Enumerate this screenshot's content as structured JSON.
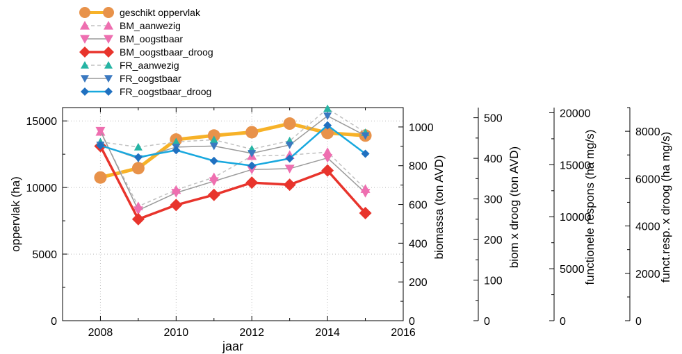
{
  "chart_data": {
    "type": "line",
    "xlabel": "jaar",
    "x": [
      2008,
      2009,
      2010,
      2011,
      2012,
      2013,
      2014,
      2015
    ],
    "xlim": [
      2007,
      2016
    ],
    "xticks": [
      2008,
      2010,
      2012,
      2014,
      2016
    ],
    "grid": true,
    "legend_position": "top-left",
    "axes": [
      {
        "id": "opp",
        "label": "oppervlak (ha)",
        "side": "left",
        "ylim": [
          0,
          16000
        ],
        "ticks": [
          0,
          5000,
          10000,
          15000
        ]
      },
      {
        "id": "bio",
        "label": "biomassa (ton AVD)",
        "side": "right",
        "ylim": [
          0,
          1100
        ],
        "ticks": [
          0,
          200,
          400,
          600,
          800,
          1000
        ]
      },
      {
        "id": "droog",
        "label": "biom x droog (ton AVD)",
        "side": "right",
        "ylim": [
          0,
          525
        ],
        "ticks": [
          0,
          100,
          200,
          300,
          400,
          500
        ]
      },
      {
        "id": "fr",
        "label": "functionele respons (ha mg/s)",
        "side": "right",
        "ylim": [
          0,
          20500
        ],
        "ticks": [
          0,
          5000,
          10000,
          15000,
          20000
        ]
      },
      {
        "id": "frdroog",
        "label": "funct.resp. x droog (ha mg/s)",
        "side": "right",
        "ylim": [
          0,
          9000
        ],
        "ticks": [
          0,
          2000,
          4000,
          6000,
          8000
        ]
      }
    ],
    "series": [
      {
        "name": "geschikt oppervlak",
        "axis": "opp",
        "color": "#f7b228",
        "marker_color": "#e8924a",
        "marker": "circle",
        "dash": "",
        "width": 5,
        "msize": 9,
        "values": [
          10750,
          11450,
          13600,
          13900,
          14150,
          14800,
          14100,
          13900
        ]
      },
      {
        "name": "BM_aanwezig",
        "axis": "bio",
        "color": "#c0c0c0",
        "marker_color": "#ee6fb0",
        "marker": "triangle-up",
        "dash": "5,4",
        "width": 1.5,
        "msize": 7,
        "values": [
          975,
          590,
          675,
          740,
          850,
          855,
          870,
          680
        ]
      },
      {
        "name": "BM_oogstbaar",
        "axis": "bio",
        "color": "#9a9a9a",
        "marker_color": "#ee6fb0",
        "marker": "triangle-down",
        "dash": "",
        "width": 1.5,
        "msize": 7,
        "values": [
          980,
          570,
          660,
          720,
          780,
          785,
          840,
          660
        ]
      },
      {
        "name": "BM_oogstbaar_droog",
        "axis": "droog",
        "color": "#e8342c",
        "marker_color": "#e8342c",
        "marker": "diamond",
        "dash": "",
        "width": 3.5,
        "msize": 9,
        "values": [
          430,
          250,
          285,
          310,
          340,
          335,
          370,
          265
        ]
      },
      {
        "name": "FR_aanwezig",
        "axis": "fr",
        "color": "#c0c0c0",
        "marker_color": "#26b4a4",
        "marker": "triangle-up",
        "dash": "5,4",
        "width": 1.5,
        "msize": 6,
        "values": [
          17200,
          16700,
          17200,
          17400,
          16500,
          17300,
          20400,
          18100
        ]
      },
      {
        "name": "FR_oogstbaar",
        "axis": "fr",
        "color": "#9a9a9a",
        "marker_color": "#3a78c0",
        "marker": "triangle-down",
        "dash": "",
        "width": 1.5,
        "msize": 6,
        "values": [
          16900,
          15600,
          16700,
          16800,
          16100,
          16900,
          19700,
          17800
        ]
      },
      {
        "name": "FR_oogstbaar_droog",
        "axis": "frdroog",
        "color": "#18a8de",
        "marker_color": "#2070c0",
        "marker": "diamond",
        "dash": "",
        "width": 2.5,
        "msize": 6,
        "values": [
          7400,
          6900,
          7200,
          6750,
          6550,
          6850,
          8250,
          7050
        ]
      }
    ]
  }
}
